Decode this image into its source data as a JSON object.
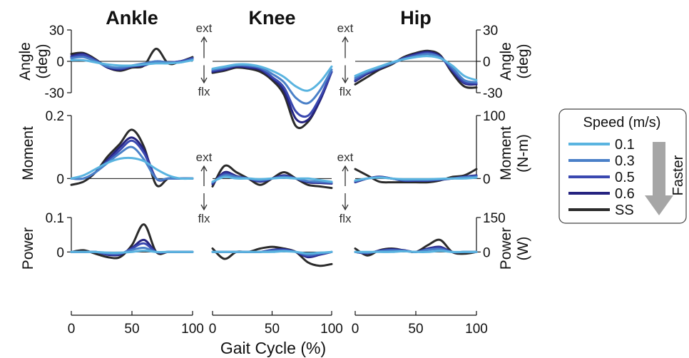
{
  "chart_data": {
    "type": "line",
    "titles": [
      "Ankle",
      "Knee",
      "Hip"
    ],
    "rows": [
      {
        "label": "Angle",
        "left_unit": "(deg)",
        "right_label": "Angle",
        "right_unit": "(deg)",
        "left_ticks": [
          "30",
          "0",
          "-30"
        ],
        "right_ticks": [
          "30",
          "0",
          "-30"
        ],
        "ylim": [
          -30,
          30
        ]
      },
      {
        "label": "Moment",
        "left_unit": "",
        "right_label": "Moment",
        "right_unit": "(N-m)",
        "left_ticks": [
          "0.2",
          "0"
        ],
        "right_ticks": [
          "100",
          "0"
        ],
        "ylim": [
          -0.04,
          0.2
        ]
      },
      {
        "label": "Power",
        "left_unit": "",
        "right_label": "Power",
        "right_unit": "(W)",
        "left_ticks": [
          "0.1",
          "0"
        ],
        "right_ticks": [
          "150",
          "0"
        ],
        "ylim": [
          -0.08,
          0.1
        ]
      }
    ],
    "x": [
      0,
      10,
      20,
      30,
      40,
      50,
      60,
      70,
      80,
      90,
      100
    ],
    "x_ticks": [
      "0",
      "50",
      "100"
    ],
    "xlabel": "Gait Cycle (%)",
    "xlim": [
      0,
      100
    ],
    "direction_labels": {
      "up": "ext",
      "down": "flx"
    },
    "legend": {
      "title": "Speed (m/s)",
      "arrow_label": "Faster",
      "placement": "right",
      "items": [
        {
          "name": "0.1",
          "color": "#5ab4e0"
        },
        {
          "name": "0.3",
          "color": "#4a80c8"
        },
        {
          "name": "0.5",
          "color": "#3a48b0"
        },
        {
          "name": "0.6",
          "color": "#252380"
        },
        {
          "name": "SS",
          "color": "#2b2b2b"
        }
      ]
    },
    "series": [
      {
        "name": "0.1",
        "panels": [
          [
            [
              1,
              1,
              -1,
              -3,
              -4,
              -4,
              -3,
              -2,
              -2,
              -1,
              1
            ],
            [
              -7,
              -5,
              -3,
              -3,
              -5,
              -9,
              -15,
              -24,
              -28,
              -20,
              -5
            ],
            [
              -14,
              -9,
              -5,
              -1,
              2,
              4,
              5,
              3,
              -4,
              -14,
              -18
            ],
            [
              0,
              0.01,
              0.03,
              0.05,
              0.063,
              0.065,
              0.055,
              0.03,
              0.01,
              0,
              0
            ],
            [
              -0.01,
              0.005,
              0,
              0,
              -0.002,
              0,
              0.002,
              0,
              0,
              -0.005,
              -0.01
            ],
            [
              -0.006,
              0,
              0.003,
              0,
              -0.002,
              -0.002,
              -0.002,
              -0.001,
              0,
              0,
              0.003
            ],
            [
              0,
              0,
              0,
              -0.002,
              -0.002,
              0,
              0.004,
              0,
              0,
              0,
              0
            ],
            [
              0,
              0,
              0,
              0,
              0,
              0,
              0.002,
              0,
              -0.004,
              -0.002,
              0
            ],
            [
              0,
              0,
              0,
              0,
              0.002,
              0,
              0,
              0.003,
              0,
              0,
              0
            ]
          ]
        ]
      },
      {
        "name": "0.3",
        "panels": [
          [
            [
              3,
              4,
              0,
              -5,
              -6,
              -4,
              -2,
              0,
              -1,
              -1,
              2
            ],
            [
              -8,
              -6,
              -4,
              -4,
              -6,
              -12,
              -20,
              -35,
              -40,
              -28,
              -8
            ],
            [
              -16,
              -10,
              -6,
              -2,
              2,
              5,
              7,
              4,
              -6,
              -18,
              -20
            ],
            [
              0,
              0,
              0.02,
              0.05,
              0.08,
              0.1,
              0.06,
              0,
              0,
              0,
              0
            ],
            [
              -0.012,
              0.01,
              0.005,
              0,
              -0.005,
              0,
              0.005,
              0,
              -0.008,
              -0.01,
              -0.012
            ],
            [
              -0.008,
              0,
              0.004,
              0,
              -0.004,
              -0.004,
              -0.004,
              -0.002,
              0,
              0.004,
              0.006
            ],
            [
              0,
              0,
              0,
              -0.004,
              -0.004,
              0.006,
              0.012,
              0,
              0,
              0,
              0
            ],
            [
              0,
              0,
              0,
              0,
              0,
              0.003,
              0.004,
              0,
              -0.008,
              -0.004,
              0
            ],
            [
              0,
              -0.002,
              0.002,
              0.004,
              0.003,
              0,
              0.006,
              0.008,
              0,
              0,
              0
            ]
          ]
        ]
      },
      {
        "name": "0.5",
        "panels": [
          [
            [
              4,
              6,
              1,
              -5,
              -7,
              -5,
              -3,
              0,
              -1,
              0,
              3
            ],
            [
              -9,
              -7,
              -4,
              -5,
              -7,
              -15,
              -25,
              -48,
              -52,
              -35,
              -10
            ],
            [
              -18,
              -11,
              -6,
              -2,
              3,
              6,
              8,
              4,
              -8,
              -20,
              -21
            ],
            [
              0,
              0,
              0.02,
              0.055,
              0.09,
              0.12,
              0.08,
              0,
              0,
              0,
              0
            ],
            [
              -0.015,
              0.015,
              0.006,
              0,
              -0.008,
              0,
              0.008,
              0,
              -0.01,
              -0.012,
              -0.014
            ],
            [
              -0.01,
              0,
              0.005,
              0,
              -0.006,
              -0.006,
              -0.006,
              -0.003,
              0,
              0.005,
              0.008
            ],
            [
              0,
              0,
              0,
              -0.006,
              -0.006,
              0.01,
              0.025,
              0,
              0,
              0,
              0
            ],
            [
              0,
              0,
              0,
              0,
              0,
              0.005,
              0.006,
              0,
              -0.012,
              -0.006,
              0
            ],
            [
              0,
              -0.003,
              0.003,
              0.006,
              0.004,
              0,
              0.008,
              0.012,
              0,
              0,
              0
            ]
          ]
        ]
      },
      {
        "name": "0.6",
        "panels": [
          [
            [
              5,
              7,
              1,
              -6,
              -8,
              -5,
              -4,
              0,
              -1,
              0,
              3
            ],
            [
              -10,
              -8,
              -5,
              -6,
              -8,
              -16,
              -28,
              -55,
              -56,
              -38,
              -10
            ],
            [
              -19,
              -12,
              -7,
              -2,
              3,
              7,
              9,
              5,
              -9,
              -21,
              -22
            ],
            [
              0,
              0,
              0.02,
              0.06,
              0.1,
              0.13,
              0.09,
              0,
              0,
              0,
              0
            ],
            [
              -0.018,
              0.02,
              0.008,
              0,
              -0.01,
              0,
              0.01,
              0,
              -0.012,
              -0.014,
              -0.016
            ],
            [
              -0.012,
              0,
              0.006,
              0,
              -0.007,
              -0.007,
              -0.007,
              -0.004,
              0,
              0.006,
              0.01
            ],
            [
              0,
              0,
              0,
              -0.008,
              -0.008,
              0.012,
              0.035,
              0,
              0,
              0,
              0
            ],
            [
              0,
              0,
              0,
              0,
              0,
              0.006,
              0.008,
              0,
              -0.015,
              -0.008,
              0
            ],
            [
              0,
              -0.004,
              0.004,
              0.008,
              0.005,
              0,
              0.01,
              0.015,
              0,
              0,
              0
            ]
          ]
        ]
      },
      {
        "name": "SS",
        "panels": [
          [
            [
              7,
              8,
              2,
              -6,
              -9,
              -6,
              -4,
              12,
              -2,
              0,
              4
            ],
            [
              -11,
              -9,
              -6,
              -7,
              -10,
              -18,
              -32,
              -62,
              -58,
              -38,
              -10
            ],
            [
              -22,
              -15,
              -8,
              -3,
              4,
              8,
              10,
              6,
              -11,
              -24,
              -25
            ],
            [
              -0.02,
              -0.01,
              0.02,
              0.07,
              0.11,
              0.155,
              0.1,
              -0.02,
              0,
              0,
              0
            ],
            [
              -0.025,
              0.04,
              0.02,
              0,
              -0.02,
              0,
              0.02,
              0,
              -0.02,
              -0.025,
              -0.03
            ],
            [
              0.03,
              0.01,
              -0.01,
              -0.012,
              -0.012,
              -0.012,
              -0.012,
              -0.006,
              0.005,
              0.01,
              0.03
            ],
            [
              0,
              0.005,
              -0.005,
              -0.015,
              -0.015,
              0.02,
              0.08,
              0,
              0,
              0,
              0
            ],
            [
              0.01,
              -0.02,
              0,
              0,
              0.01,
              0.015,
              0.01,
              0,
              -0.03,
              -0.04,
              -0.035
            ],
            [
              0.01,
              -0.01,
              0.005,
              0.01,
              0.005,
              0,
              0.02,
              0.035,
              0,
              -0.005,
              0
            ]
          ]
        ]
      }
    ]
  }
}
